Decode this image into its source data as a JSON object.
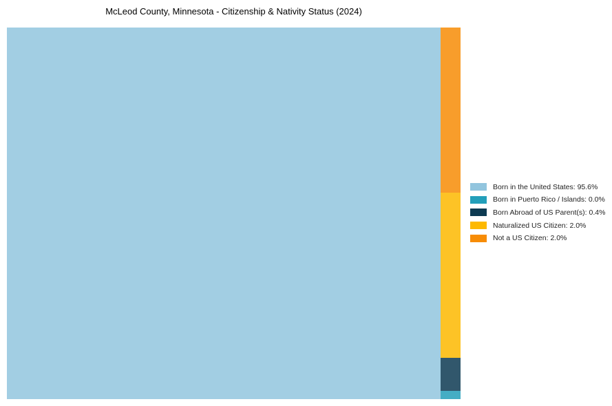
{
  "title": "McLeod County, Minnesota - Citizenship & Nativity Status (2024)",
  "chart_data": {
    "type": "treemap",
    "title": "McLeod County, Minnesota - Citizenship & Nativity Status (2024)",
    "legend_position": "right",
    "units": "percent",
    "items": [
      {
        "label": "Born in the United States",
        "value": 95.6,
        "legend_text": "Born in the United States: 95.6%",
        "color": "#92c5de"
      },
      {
        "label": "Born in Puerto Rico / Islands",
        "value": 0.0,
        "legend_text": "Born in Puerto Rico / Islands: 0.0%",
        "color": "#239fba"
      },
      {
        "label": "Born Abroad of US Parent(s)",
        "value": 0.4,
        "legend_text": "Born Abroad of US Parent(s): 0.4%",
        "color": "#0d3a52"
      },
      {
        "label": "Naturalized US Citizen",
        "value": 2.0,
        "legend_text": "Naturalized US Citizen: 2.0%",
        "color": "#fdb900"
      },
      {
        "label": "Not a US Citizen",
        "value": 2.0,
        "legend_text": "Not a US Citizen: 2.0%",
        "color": "#f78c06"
      }
    ]
  }
}
